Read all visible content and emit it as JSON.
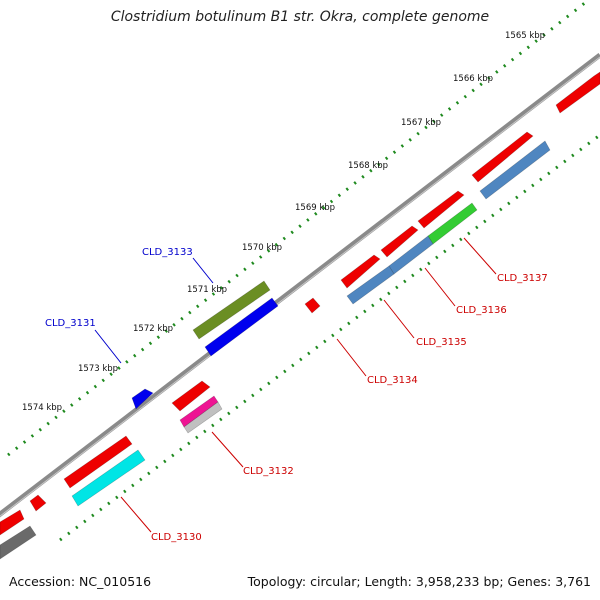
{
  "title": "Clostridium botulinum B1 str. Okra, complete genome",
  "footer": {
    "accession": "Accession: NC_010516",
    "summary": "Topology: circular; Length: 3,958,233 bp; Genes: 3,761"
  },
  "ruler": {
    "ticks": [
      "1565 kbp",
      "1566 kbp",
      "1567 kbp",
      "1568 kbp",
      "1569 kbp",
      "1570 kbp",
      "1571 kbp",
      "1572 kbp",
      "1573 kbp",
      "1574 kbp"
    ]
  },
  "gene_labels": {
    "top": [
      {
        "name": "CLD_3133",
        "color": "#0000cc"
      },
      {
        "name": "CLD_3131",
        "color": "#0000cc"
      }
    ],
    "bottom": [
      {
        "name": "CLD_3137",
        "color": "#cc0000"
      },
      {
        "name": "CLD_3136",
        "color": "#cc0000"
      },
      {
        "name": "CLD_3135",
        "color": "#cc0000"
      },
      {
        "name": "CLD_3134",
        "color": "#cc0000"
      },
      {
        "name": "CLD_3132",
        "color": "#cc0000"
      },
      {
        "name": "CLD_3130",
        "color": "#cc0000"
      }
    ]
  },
  "colors": {
    "backbone": "#8a8a8a",
    "ruler_dots": "#1f8a1f",
    "gene_red": "#ee0000",
    "gene_steelblue": "#4f86c0",
    "gene_blue": "#0000ee",
    "gene_olive": "#6b8e23",
    "gene_cyan": "#00e5e5",
    "gene_green": "#33cc33",
    "gene_magenta": "#ee1493",
    "gene_silver": "#c0c0c0",
    "gene_gray": "#6a6a6a"
  }
}
